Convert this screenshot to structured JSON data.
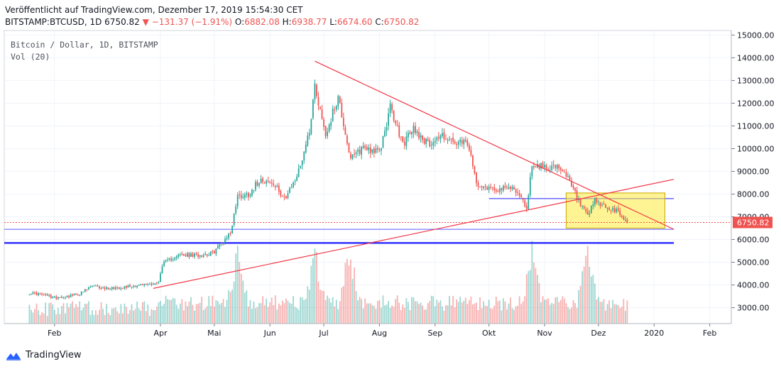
{
  "header": {
    "published": "Veröffentlicht auf TradingView.com, Dezember 17, 2019 15:54:30 CET",
    "symbol": "BITSTAMP:BTCUSD, 1D",
    "last": "6750.82",
    "change": "−131.37 (−1.91%)",
    "o_label": "O:",
    "o": "6882.08",
    "h_label": "H:",
    "h": "6938.77",
    "l_label": "L:",
    "l": "6674.60",
    "c_label": "C:",
    "c": "6750.82"
  },
  "legend": {
    "line1": "Bitcoin / Dollar, 1D, BITSTAMP",
    "line2": "Vol (20)"
  },
  "footer": {
    "brand": "TradingView"
  },
  "colors": {
    "up": "#26a69a",
    "down": "#ef5350",
    "trend": "#f23645",
    "support": "#1e1eff",
    "box": "#ffeb3b"
  },
  "chart_data": {
    "type": "candlestick",
    "last_price_tag": "6750.82",
    "ylim": [
      2300,
      15200
    ],
    "x_tick_labels": [
      "Feb",
      "Apr",
      "Mai",
      "Jun",
      "Jul",
      "Aug",
      "Sep",
      "Okt",
      "Nov",
      "Dez",
      "2020",
      "Feb"
    ],
    "y_tick_labels": [
      "3000.00",
      "4000.00",
      "5000.00",
      "6000.00",
      "7000.00",
      "8000.00",
      "9000.00",
      "10000.00",
      "11000.00",
      "12000.00",
      "13000.00",
      "14000.00",
      "15000.00"
    ],
    "close_path": [
      [
        "2019-01-18",
        3650
      ],
      [
        "2019-01-25",
        3580
      ],
      [
        "2019-02-01",
        3450
      ],
      [
        "2019-02-08",
        3500
      ],
      [
        "2019-02-15",
        3600
      ],
      [
        "2019-02-22",
        3950
      ],
      [
        "2019-03-01",
        3850
      ],
      [
        "2019-03-08",
        3880
      ],
      [
        "2019-03-15",
        3950
      ],
      [
        "2019-03-22",
        4000
      ],
      [
        "2019-03-31",
        4100
      ],
      [
        "2019-04-02",
        4900
      ],
      [
        "2019-04-10",
        5300
      ],
      [
        "2019-04-20",
        5300
      ],
      [
        "2019-04-30",
        5400
      ],
      [
        "2019-05-10",
        6300
      ],
      [
        "2019-05-14",
        7900
      ],
      [
        "2019-05-20",
        8000
      ],
      [
        "2019-05-27",
        8700
      ],
      [
        "2019-06-03",
        8400
      ],
      [
        "2019-06-10",
        7800
      ],
      [
        "2019-06-17",
        9000
      ],
      [
        "2019-06-23",
        10800
      ],
      [
        "2019-06-26",
        12800
      ],
      [
        "2019-07-02",
        10600
      ],
      [
        "2019-07-09",
        12300
      ],
      [
        "2019-07-16",
        9500
      ],
      [
        "2019-07-23",
        10100
      ],
      [
        "2019-08-01",
        9800
      ],
      [
        "2019-08-07",
        11800
      ],
      [
        "2019-08-14",
        10200
      ],
      [
        "2019-08-20",
        10900
      ],
      [
        "2019-08-28",
        10200
      ],
      [
        "2019-09-05",
        10600
      ],
      [
        "2019-09-12",
        10200
      ],
      [
        "2019-09-19",
        10250
      ],
      [
        "2019-09-24",
        8500
      ],
      [
        "2019-10-01",
        8300
      ],
      [
        "2019-10-08",
        8200
      ],
      [
        "2019-10-15",
        8300
      ],
      [
        "2019-10-22",
        7400
      ],
      [
        "2019-10-25",
        9300
      ],
      [
        "2019-10-31",
        9200
      ],
      [
        "2019-11-07",
        9200
      ],
      [
        "2019-11-14",
        8700
      ],
      [
        "2019-11-21",
        7500
      ],
      [
        "2019-11-25",
        7000
      ],
      [
        "2019-11-29",
        7700
      ],
      [
        "2019-12-05",
        7400
      ],
      [
        "2019-12-12",
        7200
      ],
      [
        "2019-12-17",
        6750
      ]
    ],
    "trendlines": [
      {
        "name": "descending resistance",
        "from": [
          "2019-06-26",
          13850
        ],
        "to": [
          "2020-01-12",
          6450
        ]
      },
      {
        "name": "ascending support",
        "from": [
          "2019-03-28",
          3850
        ],
        "to": [
          "2020-01-12",
          8650
        ]
      }
    ],
    "horizontal_lines": [
      {
        "y": 6450,
        "color": "#5b5bff"
      },
      {
        "y": 5850,
        "color": "#1e1eff"
      },
      {
        "y": 7800,
        "color": "#1e1eff",
        "from": "2019-10-01",
        "to": "2020-01-12"
      }
    ],
    "highlight_box": {
      "x0": "2019-11-13",
      "x1": "2020-01-07",
      "y0": 6500,
      "y1": 8050
    },
    "volume_profile": {
      "peak_dates": [
        "2019-05-14",
        "2019-06-26",
        "2019-07-15",
        "2019-10-25",
        "2019-11-25"
      ]
    }
  }
}
